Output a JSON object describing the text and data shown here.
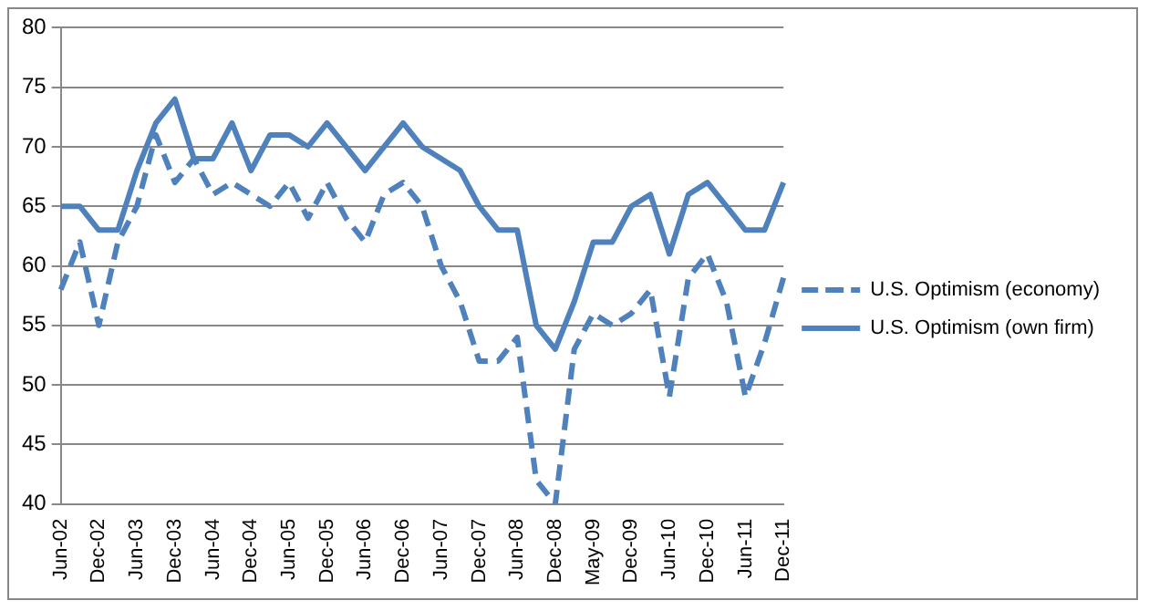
{
  "chart_data": {
    "type": "line",
    "categories": [
      "Jun-02",
      null,
      "Dec-02",
      null,
      "Jun-03",
      null,
      "Dec-03",
      null,
      "Jun-04",
      null,
      "Dec-04",
      null,
      "Jun-05",
      null,
      "Dec-05",
      null,
      "Jun-06",
      null,
      "Dec-06",
      null,
      "Jun-07",
      null,
      "Dec-07",
      null,
      "Jun-08",
      null,
      "Dec-08",
      null,
      "May-09",
      null,
      "Dec-09",
      null,
      "Jun-10",
      null,
      "Dec-10",
      null,
      "Jun-11",
      null,
      "Dec-11"
    ],
    "series": [
      {
        "name": "U.S. Optimism (economy)",
        "color": "#4f81bd",
        "line_style": "dashed",
        "values": [
          58,
          62,
          55,
          62,
          65,
          71,
          67,
          69,
          66,
          67,
          66,
          65,
          67,
          64,
          67,
          64,
          62,
          66,
          67,
          65,
          60,
          57,
          52,
          52,
          54,
          42,
          40,
          53,
          56,
          55,
          56,
          58,
          49,
          59,
          61,
          57,
          49,
          53.5,
          59
        ]
      },
      {
        "name": "U.S. Optimism (own firm)",
        "color": "#4f81bd",
        "line_style": "solid",
        "values": [
          65,
          65,
          63,
          63,
          68,
          72,
          74,
          69,
          69,
          72,
          68,
          71,
          71,
          70,
          72,
          70,
          68,
          70,
          72,
          70,
          69,
          68,
          65,
          63,
          63,
          55,
          53,
          57,
          62,
          62,
          65,
          66,
          61,
          66,
          67,
          65,
          63,
          63,
          67
        ]
      }
    ],
    "ylim": [
      40,
      80
    ],
    "yticks": [
      40,
      45,
      50,
      55,
      60,
      65,
      70,
      75,
      80
    ],
    "grid": "y",
    "legend": "right",
    "marker": "none"
  }
}
